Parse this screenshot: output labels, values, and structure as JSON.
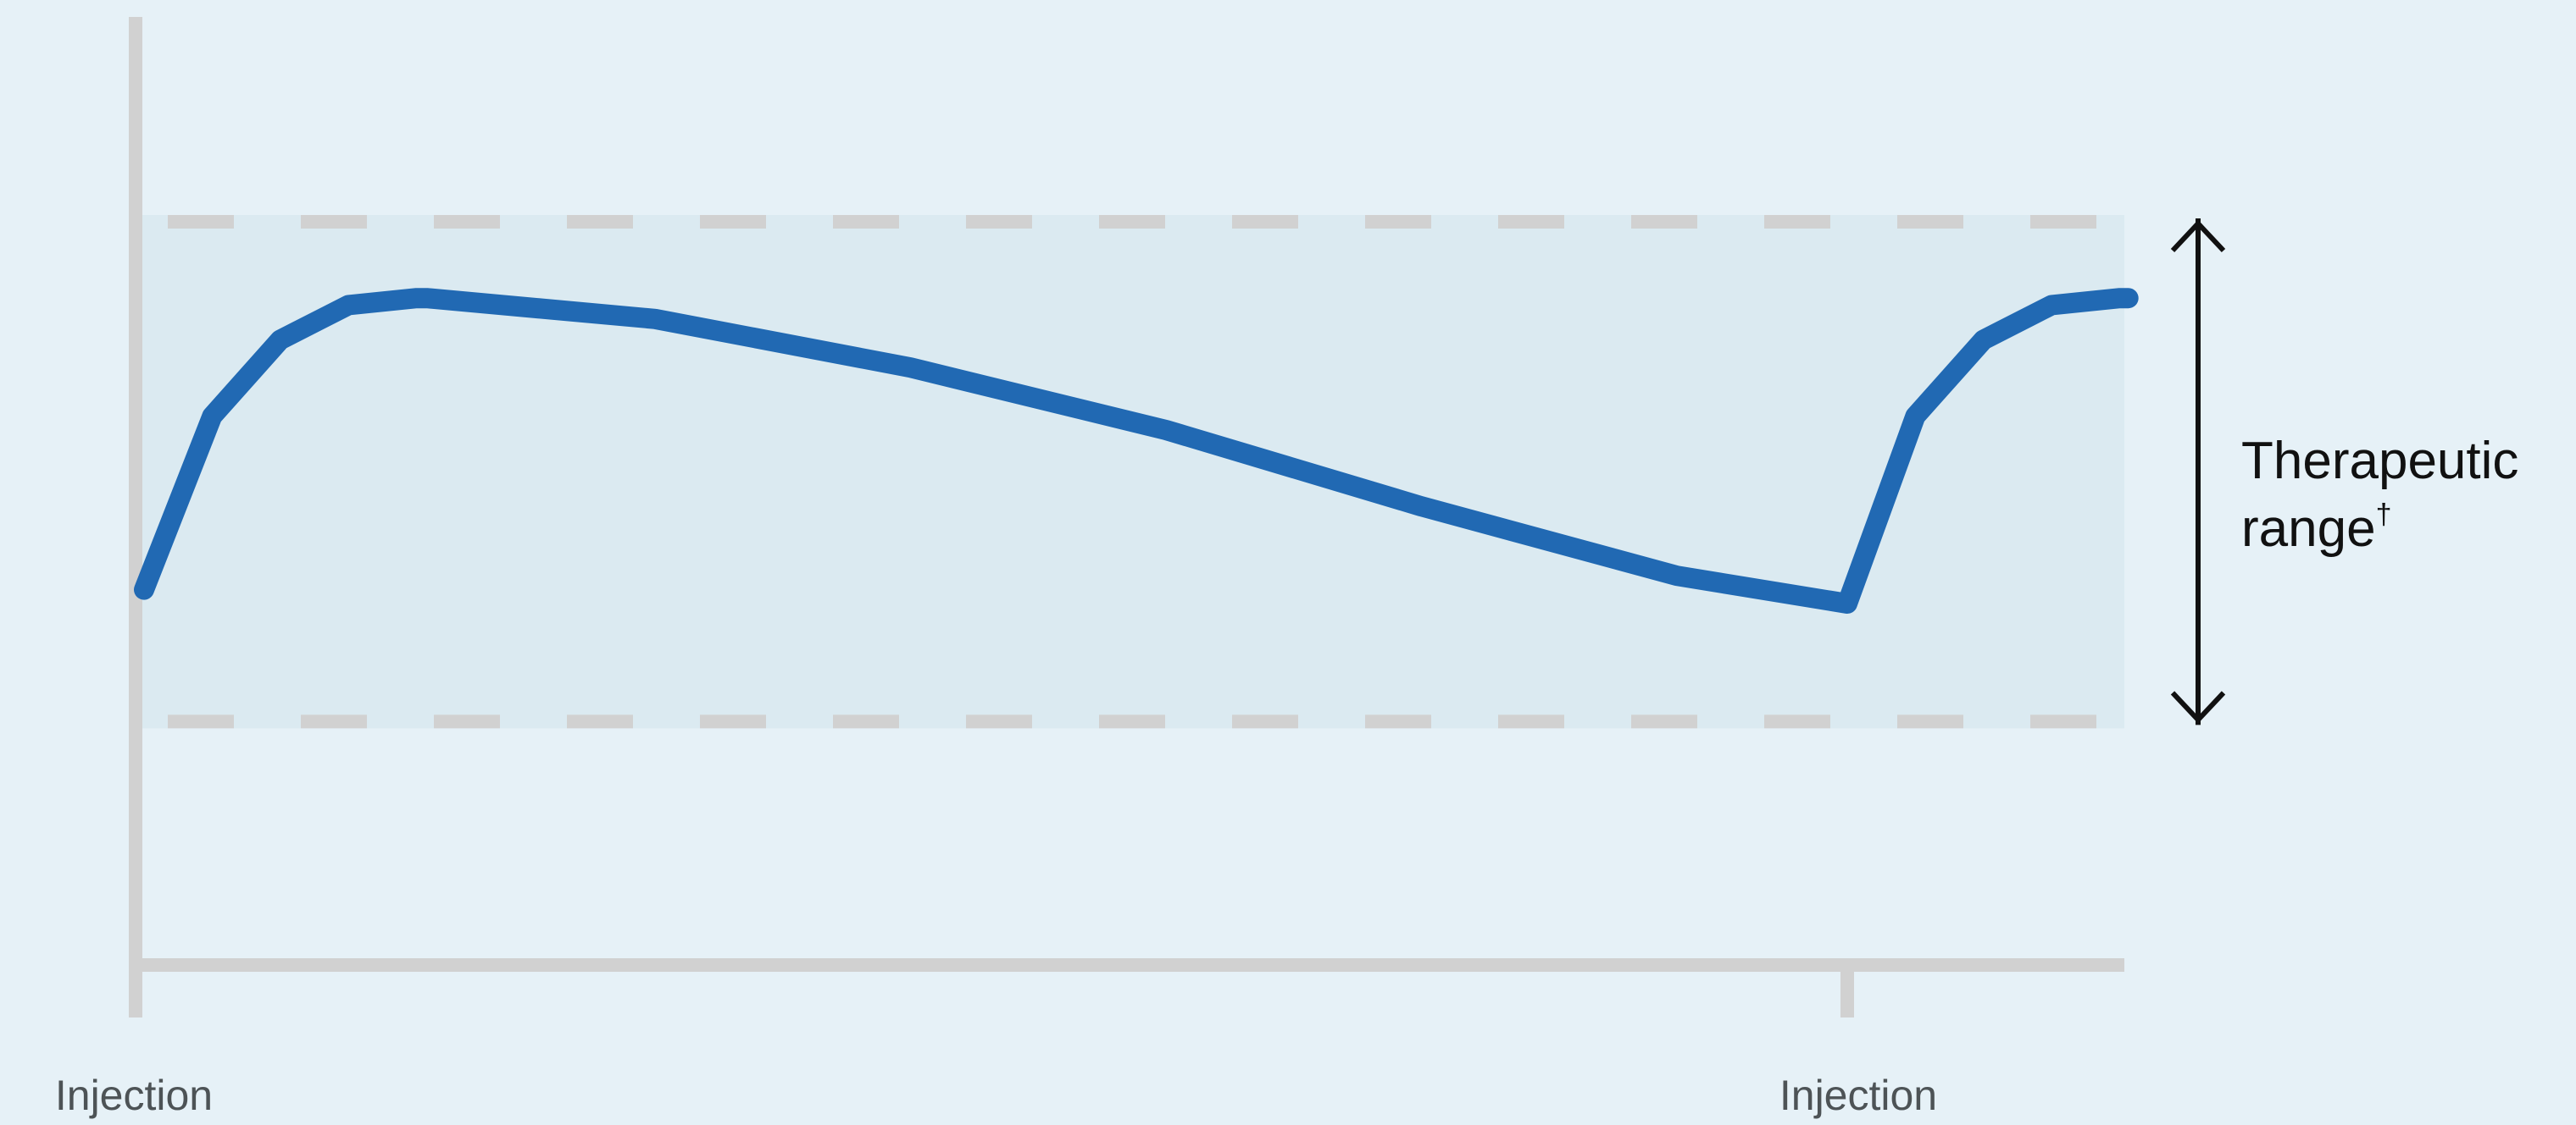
{
  "chart_data": {
    "type": "line",
    "title": "",
    "xlabel": "",
    "ylabel": "",
    "grid": false,
    "legend": "none",
    "x_ticks": [
      {
        "x": 0,
        "label": "Injection"
      },
      {
        "x": 1,
        "label": "Injection"
      }
    ],
    "xlim": [
      0,
      1.165
    ],
    "ylim": [
      0,
      1
    ],
    "therapeutic_range": {
      "lower": 0.18,
      "upper": 0.9,
      "label": "Therapeutic",
      "label_line2": "range",
      "label_suffix": "†"
    },
    "series": [
      {
        "color": "#2169b3",
        "x": [
          0,
          0.04,
          0.08,
          0.12,
          0.16,
          0.166,
          0.3,
          0.45,
          0.6,
          0.75,
          0.9,
          1.0,
          1.04,
          1.08,
          1.12,
          1.16,
          1.165
        ],
        "y": [
          0.37,
          0.62,
          0.73,
          0.78,
          0.79,
          0.79,
          0.76,
          0.69,
          0.6,
          0.49,
          0.39,
          0.35,
          0.62,
          0.73,
          0.78,
          0.79,
          0.79
        ]
      }
    ]
  },
  "colors": {
    "background": "#e6f1f7",
    "range_band": "#dbeaf1",
    "axis": "#d1d1d1",
    "line": "#2169b3",
    "arrow": "#111111",
    "injection_text": "#4d5356"
  }
}
